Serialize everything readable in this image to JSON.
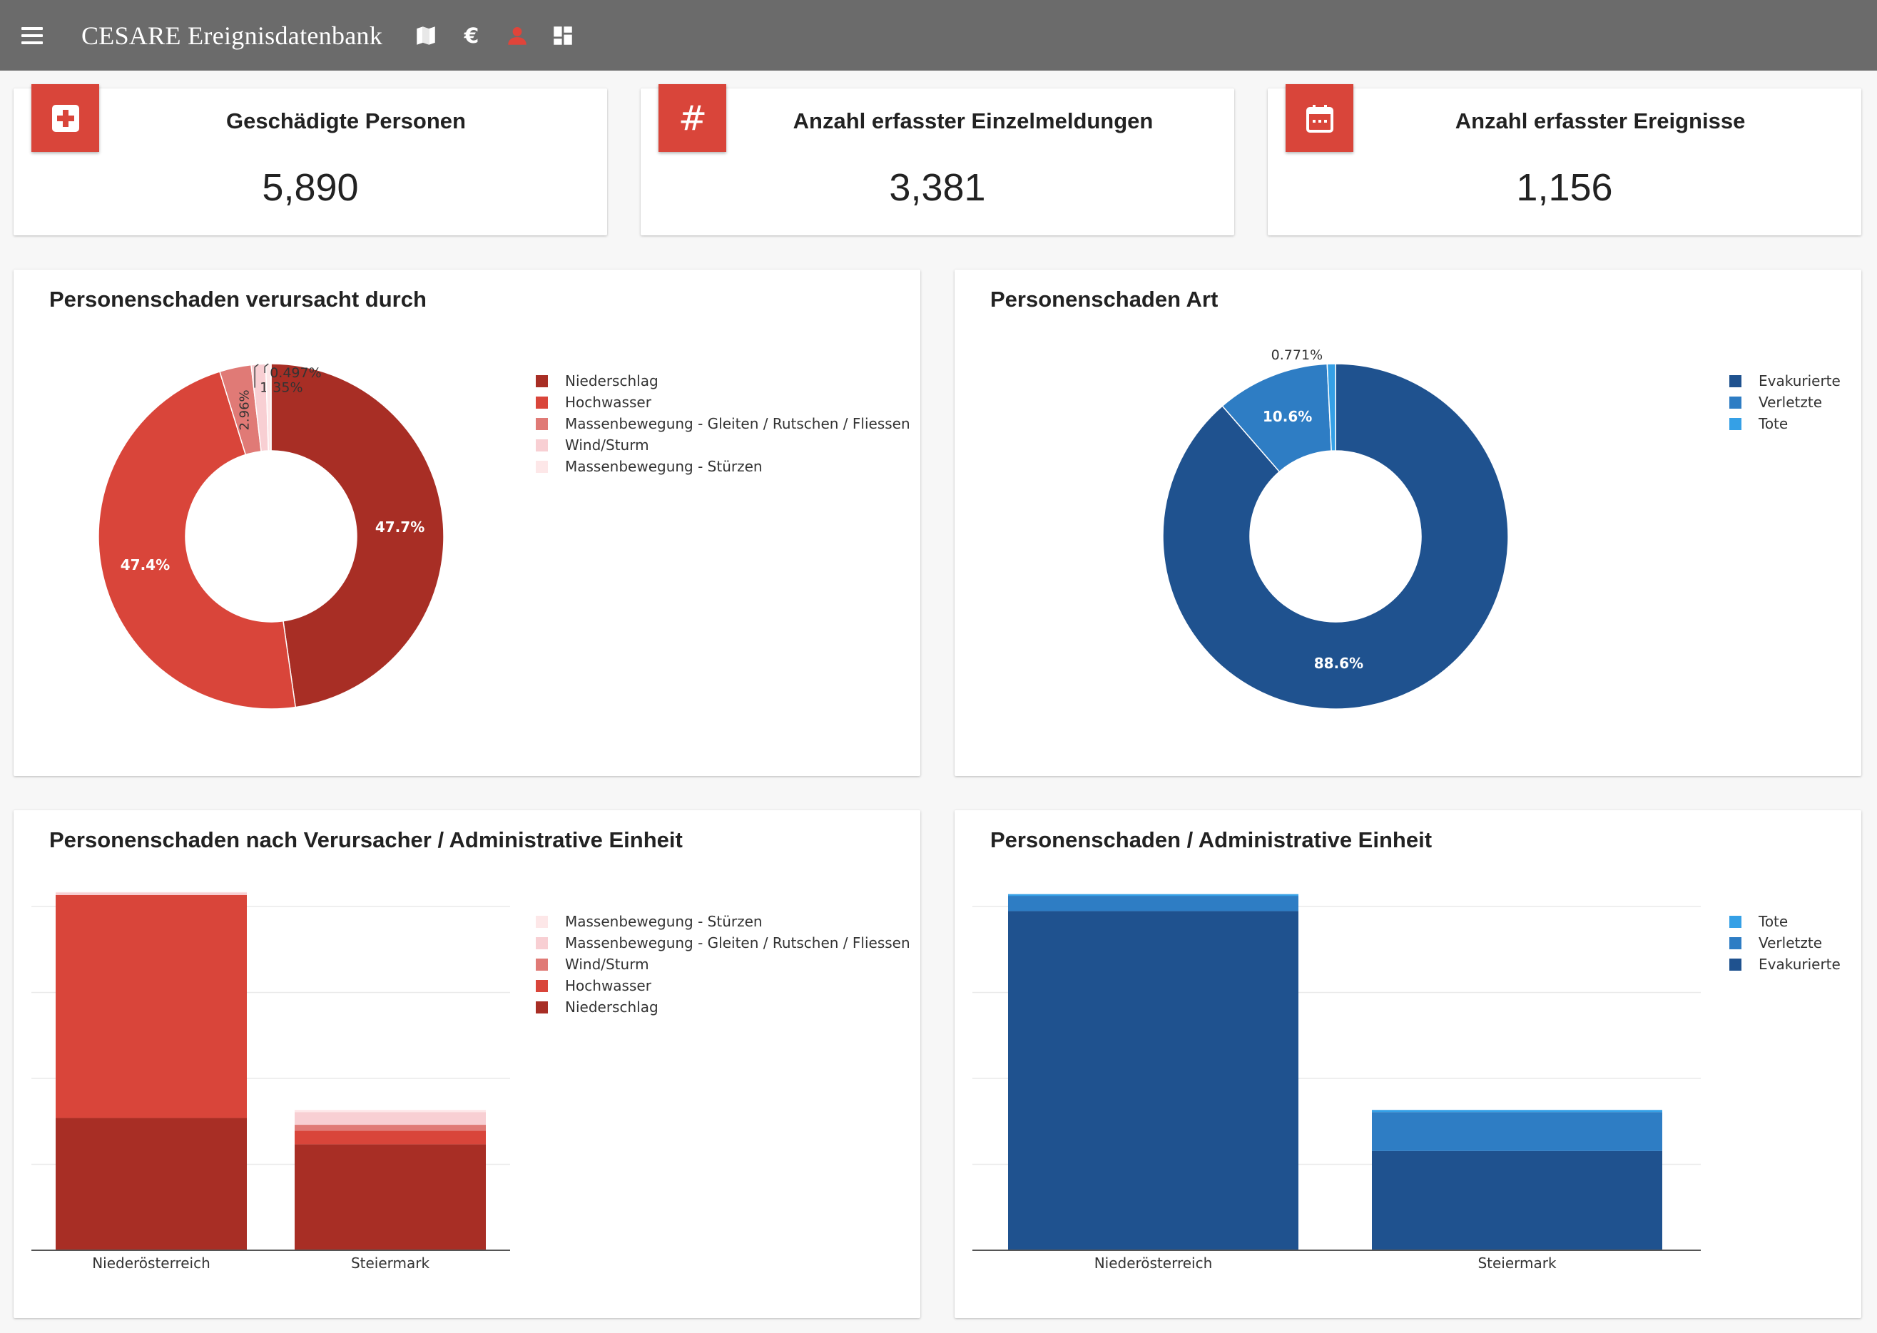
{
  "app": {
    "title": "CESARE Ereignisdatenbank",
    "nav_icons": [
      "map-icon",
      "euro-icon",
      "person-icon",
      "dashboard-icon"
    ]
  },
  "kpis": [
    {
      "title": "Geschädigte Personen",
      "value": "5,890",
      "icon": "medical-cross-icon"
    },
    {
      "title": "Anzahl erfasster Einzelmeldungen",
      "value": "3,381",
      "icon": "hash-icon"
    },
    {
      "title": "Anzahl erfasster Ereignisse",
      "value": "1,156",
      "icon": "calendar-icon"
    }
  ],
  "colors": {
    "red_dark": "#a82e25",
    "red": "#d9453a",
    "red_mid": "#e07a76",
    "red_light": "#f8cfd3",
    "red_pale": "#fde7e8",
    "blue_dark": "#1f528f",
    "blue_mid": "#2e7dc4",
    "blue_light": "#35a0e6",
    "appbar": "#6b6b6b"
  },
  "charts": {
    "cause_pie": {
      "title": "Personenschaden verursacht durch"
    },
    "type_pie": {
      "title": "Personenschaden Art"
    },
    "cause_bar": {
      "title": "Personenschaden nach Verursacher / Administrative Einheit"
    },
    "type_bar": {
      "title": "Personenschaden / Administrative Einheit"
    }
  },
  "chart_data": [
    {
      "type": "pie",
      "title": "Personenschaden verursacht durch",
      "donut": true,
      "legend_position": "right",
      "labels": [
        "Niederschlag",
        "Hochwasser",
        "Massenbewegung - Gleiten / Rutschen / Fliessen",
        "Wind/Sturm",
        "Massenbewegung - Stürzen"
      ],
      "values": [
        47.7,
        47.4,
        2.96,
        1.35,
        0.497
      ],
      "value_labels": [
        "47.7%",
        "47.4%",
        "2.96%",
        "1.35%",
        "0.497%"
      ],
      "colors": [
        "#a82e25",
        "#d9453a",
        "#e07a76",
        "#f8cfd3",
        "#fde7e8"
      ]
    },
    {
      "type": "pie",
      "title": "Personenschaden Art",
      "donut": true,
      "legend_position": "right",
      "labels": [
        "Evakurierte",
        "Verletzte",
        "Tote"
      ],
      "values": [
        88.6,
        10.6,
        0.771
      ],
      "value_labels": [
        "88.6%",
        "10.6%",
        "0.771%"
      ],
      "colors": [
        "#1f528f",
        "#2e7dc4",
        "#35a0e6"
      ]
    },
    {
      "type": "bar",
      "stacked": true,
      "title": "Personenschaden nach Verursacher / Administrative Einheit",
      "legend_position": "right",
      "categories": [
        "Niederösterreich",
        "Steiermark"
      ],
      "legend_order": [
        "Massenbewegung - Stürzen",
        "Massenbewegung - Gleiten / Rutschen / Fliessen",
        "Wind/Sturm",
        "Hochwasser",
        "Niederschlag"
      ],
      "series": [
        {
          "name": "Niederschlag",
          "color": "#a82e25",
          "values": [
            1560,
            1250
          ]
        },
        {
          "name": "Hochwasser",
          "color": "#d9453a",
          "values": [
            2630,
            160
          ]
        },
        {
          "name": "Wind/Sturm",
          "color": "#e07a76",
          "values": [
            0,
            70
          ]
        },
        {
          "name": "Massenbewegung - Gleiten / Rutschen / Fliessen",
          "color": "#f8cfd3",
          "values": [
            30,
            150
          ]
        },
        {
          "name": "Massenbewegung - Stürzen",
          "color": "#fde7e8",
          "values": [
            5,
            25
          ]
        }
      ],
      "ylim": [
        0,
        4500
      ],
      "grid": true
    },
    {
      "type": "bar",
      "stacked": true,
      "title": "Personenschaden / Administrative Einheit",
      "legend_position": "right",
      "categories": [
        "Niederösterreich",
        "Steiermark"
      ],
      "legend_order": [
        "Tote",
        "Verletzte",
        "Evakurierte"
      ],
      "series": [
        {
          "name": "Evakurierte",
          "color": "#1f528f",
          "values": [
            4000,
            1170
          ]
        },
        {
          "name": "Verletzte",
          "color": "#2e7dc4",
          "values": [
            180,
            460
          ]
        },
        {
          "name": "Tote",
          "color": "#35a0e6",
          "values": [
            20,
            25
          ]
        }
      ],
      "ylim": [
        0,
        4500
      ],
      "grid": true
    }
  ]
}
